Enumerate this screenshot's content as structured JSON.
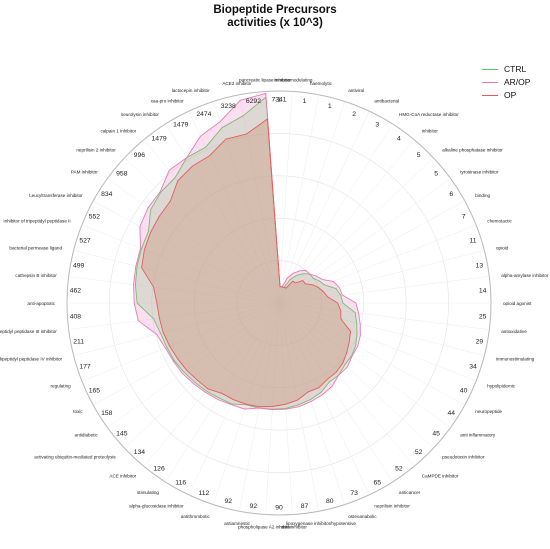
{
  "title_line1": "Biopeptide Precursors",
  "title_line2": "activities (x 10^3)",
  "chart_data": {
    "type": "radar",
    "title": "Biopeptide Precursors activities (x 10^3)",
    "scale": "log",
    "axis_max": 8000,
    "categories": [
      "immunomodulating",
      "haemolytic",
      "antiviral",
      "antibacterial",
      "HMG-CoA reductase inhibitor",
      "inhibitor",
      "alkaline phosphatase inhibitor",
      "tyrosinase inhibitor",
      "binding",
      "chemotactic",
      "opioid",
      "alpha-amylase inhibitor",
      "opioid agonist",
      "antioxidative",
      "immunostimulating",
      "hypolipidemic",
      "neuropeptide",
      "anti inflammatory",
      "pseudotoxin inhibitor",
      "CaMPDE inhibitor",
      "anticancer",
      "neprilisin inhibitor",
      "osteoanabolic",
      "lipoxygenase inhibitor/hypotensive",
      "renin inhibitor",
      "phospholipase A2 inhibitor",
      "antiamnestic",
      "antithrombotic",
      "alpha-glucosidase inhibitor",
      "stimulating",
      "ACE inhibitor",
      "activating ubiquitin-mediated proteolysis",
      "antidiabetic",
      "toxic",
      "regulating",
      "dipeptidyl peptidase IV inhibitor",
      "dipeptidyl peptidase III inhibitor",
      "anti-apoptotic",
      "cathepsin B inhibitor",
      "bacterial permease ligand",
      "inhibitor of tripeptidyl peptidase II",
      "Leucyltransferase inhibitor",
      "PAM inhibitor",
      "neprilisin 2 inhibitor",
      "calpain 1 inhibitor",
      "neurolysin inhibitor",
      "xaa-pro inhibitor",
      "lactocepin inhibitor",
      "ACE2 inhibitor",
      "pancreatic lipase inhibitor"
    ],
    "scale_labels": [
      "1",
      "1",
      "1",
      "2",
      "3",
      "4",
      "5",
      "5",
      "6",
      "7",
      "11",
      "13",
      "14",
      "25",
      "29",
      "34",
      "40",
      "44",
      "45",
      "52",
      "52",
      "65",
      "73",
      "80",
      "87",
      "90",
      "92",
      "92",
      "112",
      "116",
      "126",
      "134",
      "145",
      "158",
      "165",
      "177",
      "211",
      "408",
      "462",
      "499",
      "527",
      "552",
      "834",
      "958",
      "996",
      "1479",
      "1479",
      "2474",
      "3238",
      "6292",
      "7341"
    ],
    "series": [
      {
        "name": "CTRL",
        "color": "#4fd04f",
        "values": [
          1,
          1,
          1,
          2,
          3,
          4,
          5,
          5,
          6,
          7,
          11,
          13,
          14,
          25,
          29,
          34,
          40,
          44,
          45,
          52,
          52,
          65,
          73,
          80,
          87,
          90,
          92,
          92,
          112,
          116,
          126,
          134,
          145,
          158,
          165,
          177,
          211,
          408,
          462,
          499,
          527,
          552,
          834,
          958,
          996,
          1479,
          1479,
          2474,
          3238,
          6292
        ]
      },
      {
        "name": "AR/OP",
        "color": "#e87ab4",
        "values": [
          1,
          1,
          2,
          3,
          4,
          5,
          5,
          6,
          7,
          11,
          13,
          14,
          25,
          29,
          34,
          40,
          44,
          45,
          52,
          52,
          65,
          73,
          80,
          87,
          90,
          92,
          92,
          112,
          116,
          126,
          134,
          145,
          158,
          165,
          177,
          211,
          408,
          462,
          499,
          527,
          552,
          834,
          958,
          996,
          1479,
          1479,
          2474,
          3238,
          6292,
          7341
        ]
      },
      {
        "name": "OP",
        "color": "#e85a5a",
        "values": [
          1,
          1,
          1,
          1,
          2,
          2,
          3,
          3,
          4,
          5,
          6,
          7,
          11,
          13,
          14,
          25,
          29,
          34,
          40,
          44,
          45,
          52,
          52,
          65,
          73,
          80,
          87,
          90,
          92,
          92,
          112,
          116,
          126,
          134,
          145,
          158,
          165,
          177,
          211,
          408,
          462,
          499,
          527,
          552,
          834,
          958,
          996,
          1479,
          1479,
          2474
        ]
      }
    ],
    "legend": "top-right",
    "legend_labels": [
      "CTRL",
      "AR/OP",
      "OP"
    ]
  }
}
